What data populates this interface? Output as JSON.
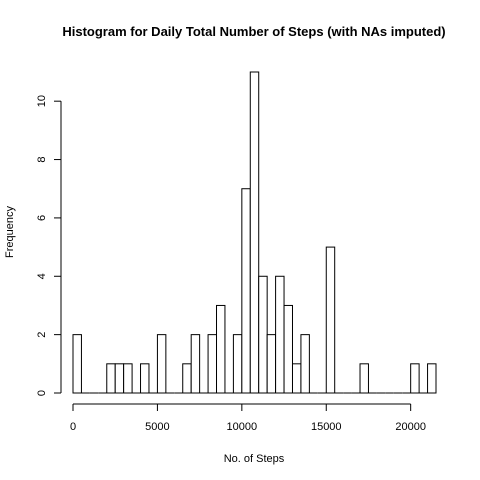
{
  "chart_data": {
    "type": "bar",
    "title": "Histogram for Daily Total Number of Steps (with NAs imputed)",
    "xlabel": "No. of Steps",
    "ylabel": "Frequency",
    "bin_width": 500,
    "x_start": 0,
    "xlim": [
      0,
      21500
    ],
    "ylim": [
      0,
      11
    ],
    "x_ticks": [
      0,
      5000,
      10000,
      15000,
      20000
    ],
    "x_tick_labels": [
      "0",
      "5000",
      "10000",
      "15000",
      "20000"
    ],
    "y_ticks": [
      0,
      2,
      4,
      6,
      8,
      10
    ],
    "y_tick_labels": [
      "0",
      "2",
      "4",
      "6",
      "8",
      "10"
    ],
    "values": [
      2,
      0,
      0,
      0,
      1,
      1,
      1,
      0,
      1,
      0,
      2,
      0,
      0,
      1,
      2,
      0,
      2,
      3,
      0,
      2,
      7,
      11,
      4,
      2,
      4,
      3,
      1,
      2,
      0,
      0,
      5,
      0,
      0,
      0,
      1,
      0,
      0,
      0,
      0,
      0,
      1,
      0,
      1
    ],
    "grid": false,
    "bar_fill": "#ffffff",
    "bar_stroke": "#000000"
  }
}
